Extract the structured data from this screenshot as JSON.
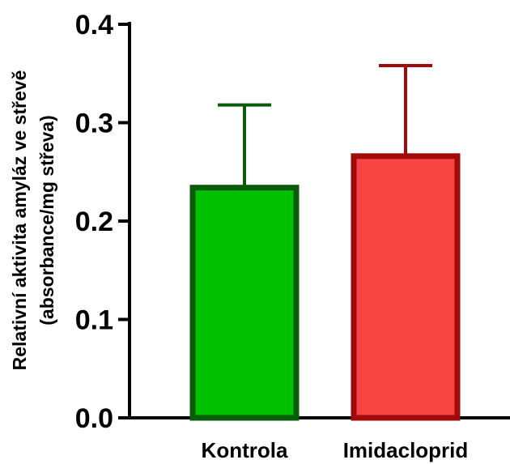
{
  "chart_data": {
    "type": "bar",
    "categories": [
      "Kontrola",
      "Imidacloprid"
    ],
    "values": [
      0.234,
      0.266
    ],
    "errors": [
      0.084,
      0.092
    ],
    "ylabel_line1": "Relativní aktivita amyláz ve střevě",
    "ylabel_line2": "(absorbance/mg střeva)",
    "ylim": [
      0,
      0.4
    ],
    "yticks": [
      "0.0",
      "0.1",
      "0.2",
      "0.3",
      "0.4"
    ],
    "tick_values": [
      0,
      0.1,
      0.2,
      0.3,
      0.4
    ],
    "colors": {
      "fill": [
        "#00c000",
        "#f94444"
      ],
      "stroke": [
        "#0a5c0a",
        "#a00a0a"
      ]
    },
    "grid": false,
    "legend": "none"
  }
}
